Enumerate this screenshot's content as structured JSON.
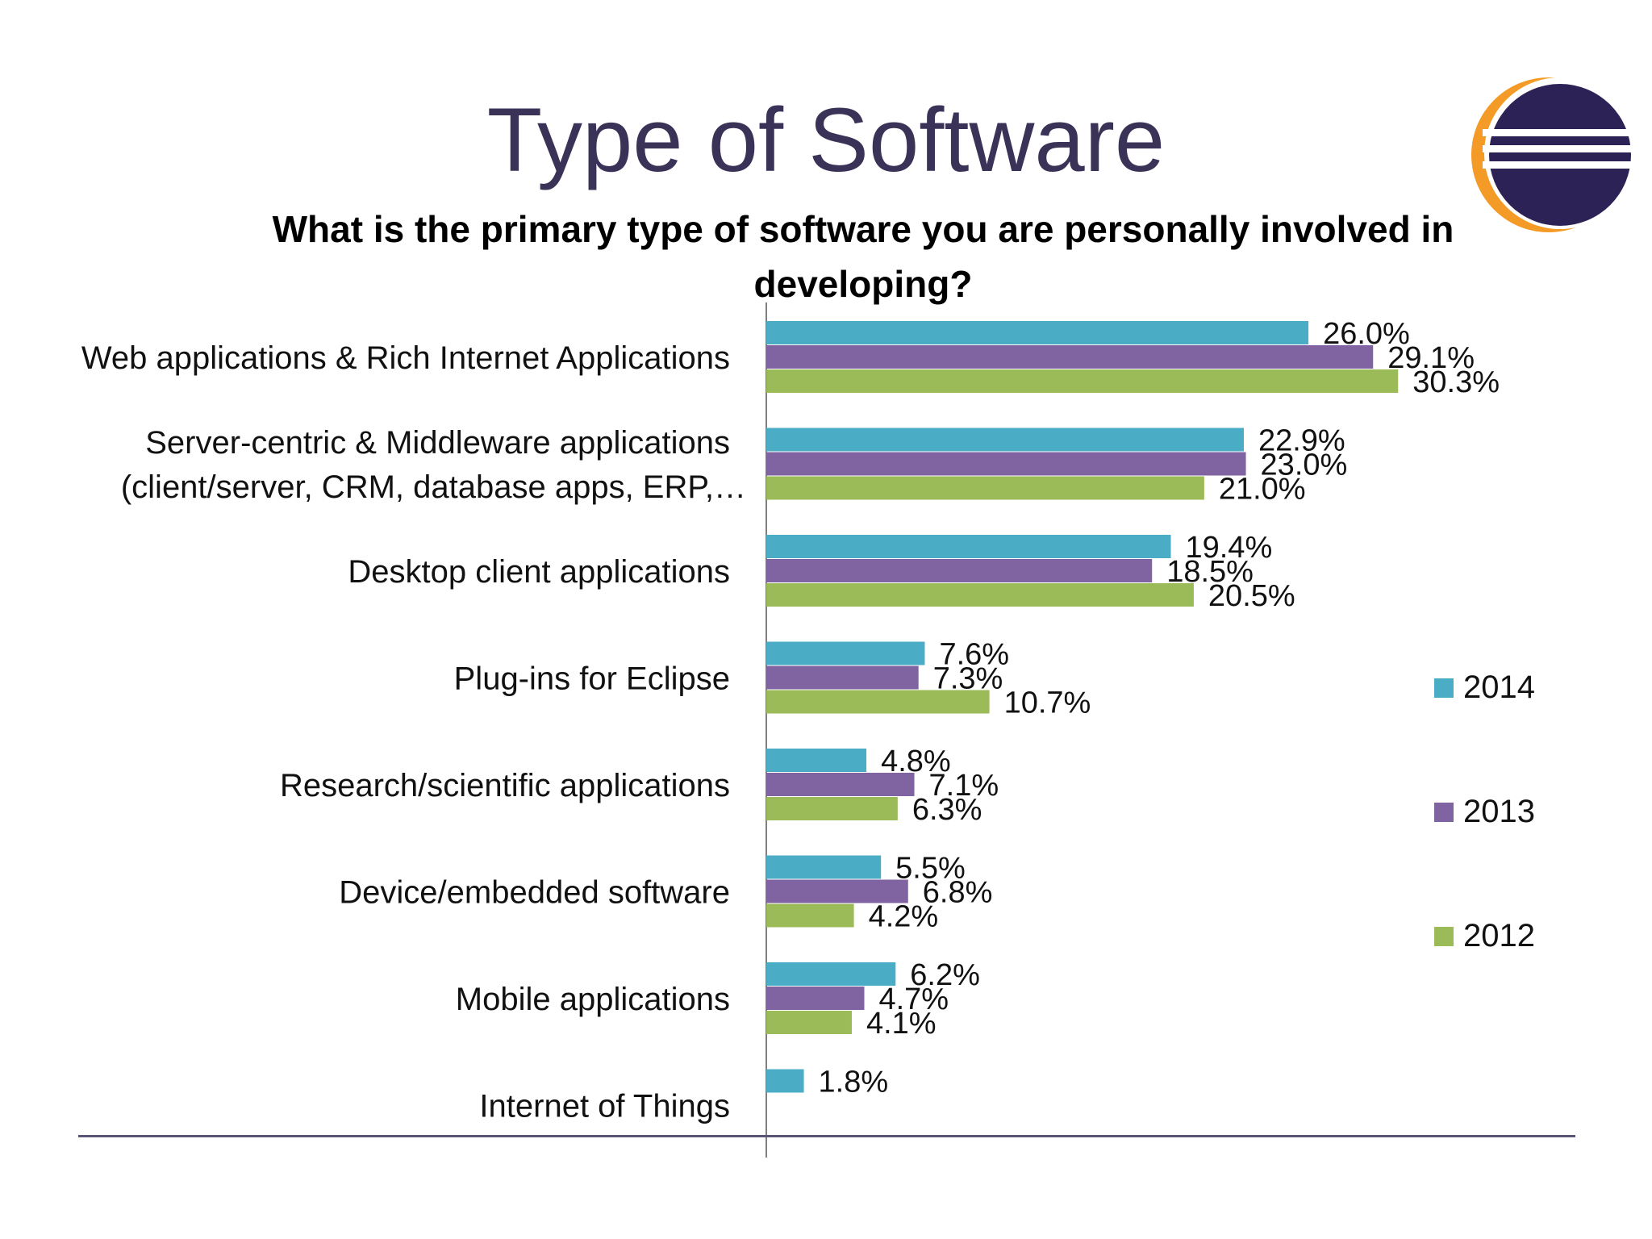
{
  "slide": {
    "title": "Type of Software",
    "subtitle": "What is the primary type of software you are personally involved in developing?"
  },
  "logo": {
    "icon": "eclipse-logo-icon"
  },
  "colors": {
    "title": "#3b3257",
    "rule": "#5b5378",
    "axis": "#7f7f7f",
    "series_2014": "#4bacc6",
    "series_2013": "#8064a2",
    "series_2012": "#9bbb59"
  },
  "chart_data": {
    "type": "bar",
    "orientation": "horizontal",
    "title": "",
    "xlabel": "",
    "ylabel": "",
    "xlim": [
      0,
      35
    ],
    "grid": false,
    "legend_position": "right",
    "categories": [
      "Web applications & Rich Internet Applications",
      "Server-centric & Middleware applications (client/server, CRM, database apps, ERP,…",
      "Desktop client applications",
      "Plug-ins for Eclipse",
      "Research/scientific applications",
      "Device/embedded software",
      "Mobile applications",
      "Internet of Things"
    ],
    "category_lines": [
      [
        "Web applications & Rich Internet Applications"
      ],
      [
        "Server-centric & Middleware applications",
        "(client/server, CRM, database apps, ERP,…"
      ],
      [
        "Desktop client applications"
      ],
      [
        "Plug-ins for Eclipse"
      ],
      [
        "Research/scientific applications"
      ],
      [
        "Device/embedded software"
      ],
      [
        "Mobile applications"
      ],
      [
        "Internet of Things"
      ]
    ],
    "series": [
      {
        "name": "2014",
        "color": "#4bacc6",
        "values": [
          26.0,
          22.9,
          19.4,
          7.6,
          4.8,
          5.5,
          6.2,
          1.8
        ],
        "labels": [
          "26.0%",
          "22.9%",
          "19.4%",
          "7.6%",
          "4.8%",
          "5.5%",
          "6.2%",
          "1.8%"
        ]
      },
      {
        "name": "2013",
        "color": "#8064a2",
        "values": [
          29.1,
          23.0,
          18.5,
          7.3,
          7.1,
          6.8,
          4.7,
          null
        ],
        "labels": [
          "29.1%",
          "23.0%",
          "18.5%",
          "7.3%",
          "7.1%",
          "6.8%",
          "4.7%",
          null
        ]
      },
      {
        "name": "2012",
        "color": "#9bbb59",
        "values": [
          30.3,
          21.0,
          20.5,
          10.7,
          6.3,
          4.2,
          4.1,
          null
        ],
        "labels": [
          "30.3%",
          "21.0%",
          "20.5%",
          "10.7%",
          "6.3%",
          "4.2%",
          "4.1%",
          null
        ]
      }
    ]
  }
}
